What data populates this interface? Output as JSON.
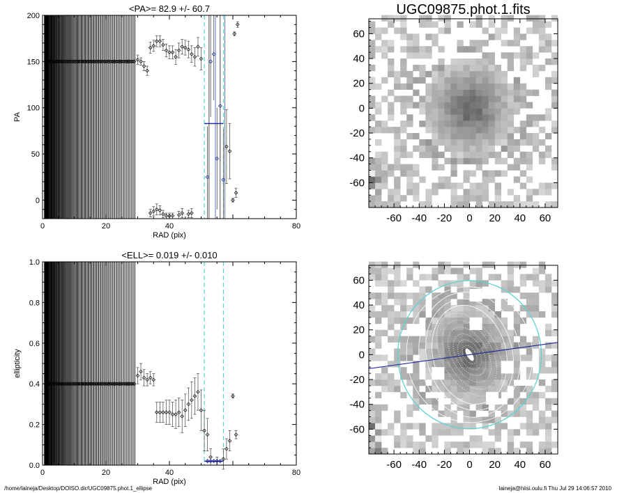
{
  "chart_data": [
    {
      "type": "scatter",
      "title": "<PA>=  82.9 +/-  60.7",
      "xlabel": "RAD (pix)",
      "ylabel": "PA",
      "xlim": [
        0,
        80
      ],
      "ylim": [
        -20,
        200
      ],
      "xticks": [
        "0",
        "20",
        "40",
        "80"
      ],
      "yticks": [
        "0",
        "50",
        "100",
        "150",
        "200"
      ],
      "mean_line": {
        "x": [
          51,
          57
        ],
        "y": 82.9
      },
      "dashed_lines_x": [
        51,
        57
      ],
      "solid_lines_x": [
        52.5,
        54.5,
        56,
        57.5
      ],
      "points": [
        {
          "x": 30,
          "y": 152,
          "e": 5
        },
        {
          "x": 31,
          "y": 150,
          "e": 4
        },
        {
          "x": 32,
          "y": 145,
          "e": 5
        },
        {
          "x": 33,
          "y": 140,
          "e": 5
        },
        {
          "x": 34,
          "y": 165,
          "e": 6
        },
        {
          "x": 35,
          "y": 167,
          "e": 6
        },
        {
          "x": 36,
          "y": 172,
          "e": 6
        },
        {
          "x": 37,
          "y": 172,
          "e": 6
        },
        {
          "x": 38,
          "y": 168,
          "e": 6
        },
        {
          "x": 39,
          "y": 162,
          "e": 7
        },
        {
          "x": 40,
          "y": 160,
          "e": 7
        },
        {
          "x": 41,
          "y": 160,
          "e": 7
        },
        {
          "x": 42,
          "y": 155,
          "e": 8
        },
        {
          "x": 43,
          "y": 162,
          "e": 8
        },
        {
          "x": 44,
          "y": 166,
          "e": 8
        },
        {
          "x": 45,
          "y": 165,
          "e": 8
        },
        {
          "x": 46,
          "y": 163,
          "e": 9
        },
        {
          "x": 47,
          "y": 158,
          "e": 9
        },
        {
          "x": 48,
          "y": 155,
          "e": 10
        },
        {
          "x": 49,
          "y": 166,
          "e": 10
        },
        {
          "x": 50,
          "y": 153,
          "e": 12
        },
        {
          "x": 34,
          "y": -14,
          "e": 4
        },
        {
          "x": 35,
          "y": -12,
          "e": 5
        },
        {
          "x": 36,
          "y": -10,
          "e": 6
        },
        {
          "x": 37,
          "y": -11,
          "e": 5
        },
        {
          "x": 38,
          "y": -15,
          "e": 4
        },
        {
          "x": 39,
          "y": -17,
          "e": 3
        },
        {
          "x": 40,
          "y": -17,
          "e": 3
        },
        {
          "x": 41,
          "y": -17,
          "e": 3
        },
        {
          "x": 43,
          "y": -16,
          "e": 4
        },
        {
          "x": 44,
          "y": -14,
          "e": 5
        },
        {
          "x": 46,
          "y": -15,
          "e": 4
        },
        {
          "x": 47,
          "y": -14,
          "e": 5
        },
        {
          "x": 58,
          "y": 58,
          "e": 40
        },
        {
          "x": 59,
          "y": 53,
          "e": 30
        },
        {
          "x": 60,
          "y": 0,
          "e": 2
        },
        {
          "x": 61,
          "y": 8,
          "e": 5
        },
        {
          "x": 60.5,
          "y": 180,
          "e": 2
        },
        {
          "x": 61.5,
          "y": 190,
          "e": 3
        }
      ],
      "blue_points": [
        {
          "x": 52,
          "y": 25,
          "e": 55
        },
        {
          "x": 53,
          "y": 150,
          "e": 60
        },
        {
          "x": 54,
          "y": 158,
          "e": 50
        },
        {
          "x": 55,
          "y": 45,
          "e": 55
        },
        {
          "x": 56,
          "y": 102,
          "e": 60
        },
        {
          "x": 57,
          "y": 22,
          "e": 55
        }
      ],
      "constant_value": 150
    },
    {
      "type": "scatter",
      "title": "<ELL>= 0.019 +/-  0.010",
      "xlabel": "RAD (pix)",
      "ylabel": "ellipticity",
      "xlim": [
        0,
        80
      ],
      "ylim": [
        0,
        1.0
      ],
      "xticks": [
        "0",
        "20",
        "40",
        "80"
      ],
      "yticks": [
        "0.0",
        "0.2",
        "0.4",
        "0.6",
        "0.8",
        "1.0"
      ],
      "mean_line": {
        "x": [
          51,
          57
        ],
        "y": 0.019
      },
      "dashed_lines_x": [
        51,
        57
      ],
      "points": [
        {
          "x": 30,
          "y": 0.44,
          "e": 0.04
        },
        {
          "x": 31,
          "y": 0.46,
          "e": 0.04
        },
        {
          "x": 32,
          "y": 0.43,
          "e": 0.04
        },
        {
          "x": 33,
          "y": 0.42,
          "e": 0.03
        },
        {
          "x": 34,
          "y": 0.43,
          "e": 0.03
        },
        {
          "x": 35,
          "y": 0.42,
          "e": 0.03
        },
        {
          "x": 36,
          "y": 0.26,
          "e": 0.05
        },
        {
          "x": 37,
          "y": 0.26,
          "e": 0.05
        },
        {
          "x": 38,
          "y": 0.26,
          "e": 0.05
        },
        {
          "x": 39,
          "y": 0.26,
          "e": 0.06
        },
        {
          "x": 40,
          "y": 0.26,
          "e": 0.06
        },
        {
          "x": 41,
          "y": 0.25,
          "e": 0.06
        },
        {
          "x": 42,
          "y": 0.25,
          "e": 0.07
        },
        {
          "x": 43,
          "y": 0.26,
          "e": 0.07
        },
        {
          "x": 44,
          "y": 0.24,
          "e": 0.08
        },
        {
          "x": 45,
          "y": 0.27,
          "e": 0.08
        },
        {
          "x": 46,
          "y": 0.3,
          "e": 0.08
        },
        {
          "x": 47,
          "y": 0.32,
          "e": 0.09
        },
        {
          "x": 48,
          "y": 0.34,
          "e": 0.09
        },
        {
          "x": 49,
          "y": 0.36,
          "e": 0.09
        },
        {
          "x": 50,
          "y": 0.27,
          "e": 0.1
        },
        {
          "x": 51,
          "y": 0.17,
          "e": 0.1
        },
        {
          "x": 52,
          "y": 0.15,
          "e": 0.08
        },
        {
          "x": 53,
          "y": 0.04,
          "e": 0.04
        },
        {
          "x": 55,
          "y": 0.02,
          "e": 0.02
        },
        {
          "x": 57,
          "y": 0.03,
          "e": 0.05
        },
        {
          "x": 58,
          "y": 0.08,
          "e": 0.05
        },
        {
          "x": 59,
          "y": 0.12,
          "e": 0.05
        },
        {
          "x": 60,
          "y": 0.34,
          "e": 0.01
        },
        {
          "x": 61,
          "y": 0.15,
          "e": 0.02
        }
      ],
      "blue_points": [
        {
          "x": 52,
          "y": 0.02,
          "e": 0.01
        },
        {
          "x": 53,
          "y": 0.02,
          "e": 0.01
        },
        {
          "x": 54,
          "y": 0.02,
          "e": 0.01
        },
        {
          "x": 55,
          "y": 0.02,
          "e": 0.01
        },
        {
          "x": 56,
          "y": 0.02,
          "e": 0.01
        }
      ],
      "constant_value": 0.4
    },
    {
      "type": "heatmap",
      "title": "UGC09875.phot.1.fits",
      "xlim": [
        -80,
        70
      ],
      "ylim": [
        -80,
        72
      ],
      "xticks": [
        "-60",
        "-40",
        "-20",
        "0",
        "20",
        "40",
        "60"
      ],
      "yticks": [
        "-60",
        "-40",
        "-20",
        "0",
        "20",
        "40",
        "60"
      ]
    },
    {
      "type": "heatmap",
      "title": "",
      "xlim": [
        -80,
        70
      ],
      "ylim": [
        -80,
        72
      ],
      "xticks": [
        "-60",
        "-40",
        "-20",
        "0",
        "20",
        "40",
        "60"
      ],
      "yticks": [
        "-60",
        "-40",
        "-20",
        "0",
        "20",
        "40",
        "60"
      ],
      "pa_line_deg": -8,
      "outer_ellipse": {
        "a": 57,
        "b": 56
      },
      "inner_ellipses": [
        {
          "a": 8,
          "b": 4.8,
          "pa": 150
        },
        {
          "a": 13,
          "b": 7.8,
          "pa": 150
        },
        {
          "a": 18,
          "b": 10.8,
          "pa": 150
        },
        {
          "a": 24,
          "b": 14,
          "pa": 150
        },
        {
          "a": 30,
          "b": 18,
          "pa": 150
        },
        {
          "a": 36,
          "b": 22,
          "pa": 150
        },
        {
          "a": 40,
          "b": 29,
          "pa": 165
        },
        {
          "a": 45,
          "b": 34,
          "pa": 165
        },
        {
          "a": 50,
          "b": 40,
          "pa": 170
        },
        {
          "a": 54,
          "b": 50,
          "pa": 172
        }
      ]
    }
  ],
  "footer": {
    "left": "/home/laineja/Desktop/DOISO.dir/UGC09875.phot.1_ellipse",
    "right": "laineja@hiisi.oulu.fi  Thu Jul 29 14:06:57 2010"
  }
}
